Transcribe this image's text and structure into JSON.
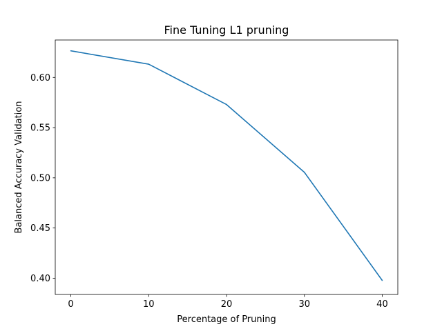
{
  "chart_data": {
    "type": "line",
    "title": "Fine Tuning L1 pruning",
    "xlabel": "Percentage of Pruning",
    "ylabel": "Balanced Accuracy Validation",
    "x": [
      0,
      10,
      20,
      30,
      40
    ],
    "series": [
      {
        "values": [
          0.6265,
          0.6132,
          0.573,
          0.5055,
          0.3978
        ],
        "color": "#1f77b4"
      }
    ],
    "xlim": [
      -2,
      42
    ],
    "ylim": [
      0.3838,
      0.6373
    ],
    "xticks": [
      0,
      10,
      20,
      30,
      40
    ],
    "xtick_labels": [
      "0",
      "10",
      "20",
      "30",
      "40"
    ],
    "yticks": [
      0.4,
      0.45,
      0.5,
      0.55,
      0.6
    ],
    "ytick_labels": [
      "0.40",
      "0.45",
      "0.50",
      "0.55",
      "0.60"
    ],
    "grid": false,
    "legend": "none"
  }
}
